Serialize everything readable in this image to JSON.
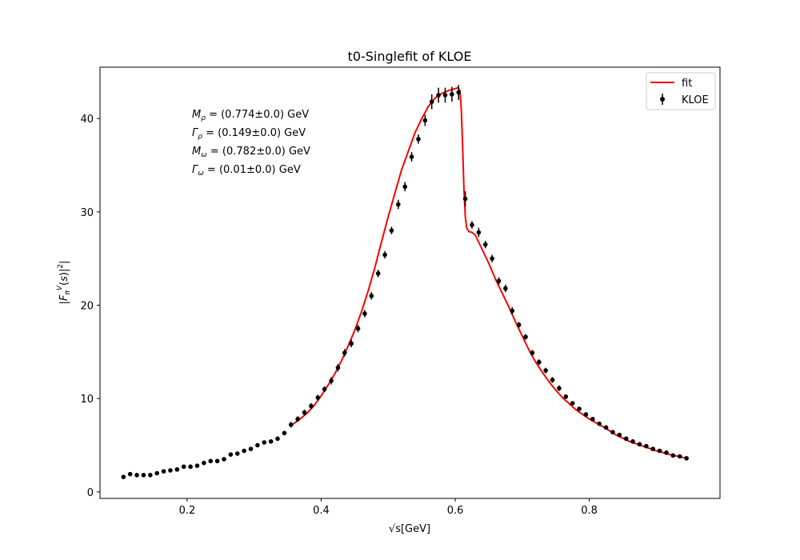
{
  "chart_data": {
    "type": "scatter",
    "title": "t0-Singlefit of KLOE",
    "xlabel": "√s[GeV]",
    "ylabel": "|F_π^V(s)|²",
    "xlim": [
      0.07,
      0.995
    ],
    "ylim": [
      -0.7,
      45.5
    ],
    "xticks": [
      0.2,
      0.4,
      0.6,
      0.8
    ],
    "xtick_labels": [
      "0.2",
      "0.4",
      "0.6",
      "0.8"
    ],
    "yticks": [
      0,
      10,
      20,
      30,
      40
    ],
    "ytick_labels": [
      "0",
      "10",
      "20",
      "30",
      "40"
    ],
    "legend_position": "top-right",
    "legend": [
      {
        "label": "fit",
        "kind": "line",
        "color": "#ff0000"
      },
      {
        "label": "KLOE",
        "kind": "errorbar",
        "color": "#000000"
      }
    ],
    "annotations": [
      {
        "var": "M",
        "sub": "ρ",
        "text": "= (0.774±0.0) GeV"
      },
      {
        "var": "Γ",
        "sub": "ρ",
        "text": "= (0.149±0.0) GeV"
      },
      {
        "var": "M",
        "sub": "ω",
        "text": "= (0.782±0.0) GeV"
      },
      {
        "var": "Γ",
        "sub": "ω",
        "text": "= (0.01±0.0) GeV"
      }
    ],
    "series": [
      {
        "name": "fit",
        "style": "line",
        "color": "#ff0000",
        "x": [
          0.355,
          0.37,
          0.38,
          0.39,
          0.4,
          0.41,
          0.42,
          0.43,
          0.44,
          0.45,
          0.46,
          0.47,
          0.48,
          0.49,
          0.5,
          0.51,
          0.52,
          0.53,
          0.54,
          0.55,
          0.56,
          0.57,
          0.58,
          0.59,
          0.6,
          0.604,
          0.607,
          0.609,
          0.611,
          0.613,
          0.615,
          0.617,
          0.62,
          0.625,
          0.63,
          0.64,
          0.65,
          0.66,
          0.67,
          0.68,
          0.69,
          0.7,
          0.71,
          0.72,
          0.73,
          0.74,
          0.75,
          0.76,
          0.78,
          0.8,
          0.82,
          0.84,
          0.86,
          0.88,
          0.9,
          0.92,
          0.945
        ],
        "y": [
          7.1,
          7.9,
          8.5,
          9.3,
          10.3,
          11.4,
          12.6,
          14.0,
          15.6,
          17.3,
          19.3,
          21.5,
          24.0,
          26.8,
          29.5,
          32.0,
          34.5,
          36.5,
          38.5,
          40.0,
          41.3,
          42.2,
          42.7,
          43.0,
          43.2,
          43.3,
          43.0,
          41.0,
          37.0,
          32.5,
          29.5,
          28.3,
          27.9,
          27.8,
          27.5,
          26.0,
          24.5,
          22.8,
          21.3,
          19.8,
          18.2,
          16.7,
          15.2,
          13.9,
          12.8,
          11.8,
          10.9,
          10.1,
          8.8,
          7.8,
          7.0,
          6.1,
          5.4,
          4.9,
          4.4,
          4.0,
          3.6
        ]
      },
      {
        "name": "KLOE",
        "style": "errorbar",
        "color": "#000000",
        "x": [
          0.105,
          0.115,
          0.125,
          0.135,
          0.145,
          0.155,
          0.165,
          0.175,
          0.185,
          0.195,
          0.205,
          0.215,
          0.225,
          0.235,
          0.245,
          0.255,
          0.265,
          0.275,
          0.285,
          0.295,
          0.305,
          0.315,
          0.325,
          0.335,
          0.345,
          0.355,
          0.365,
          0.375,
          0.385,
          0.395,
          0.405,
          0.415,
          0.425,
          0.435,
          0.445,
          0.455,
          0.465,
          0.475,
          0.485,
          0.495,
          0.505,
          0.515,
          0.525,
          0.535,
          0.545,
          0.555,
          0.565,
          0.575,
          0.585,
          0.595,
          0.605,
          0.615,
          0.625,
          0.635,
          0.645,
          0.655,
          0.665,
          0.675,
          0.685,
          0.695,
          0.705,
          0.715,
          0.725,
          0.735,
          0.745,
          0.755,
          0.765,
          0.775,
          0.785,
          0.795,
          0.805,
          0.815,
          0.825,
          0.835,
          0.845,
          0.855,
          0.865,
          0.875,
          0.885,
          0.895,
          0.905,
          0.915,
          0.925,
          0.935,
          0.945
        ],
        "y": [
          1.6,
          1.9,
          1.8,
          1.8,
          1.8,
          2.0,
          2.2,
          2.3,
          2.4,
          2.7,
          2.7,
          2.8,
          3.1,
          3.3,
          3.3,
          3.5,
          4.0,
          4.1,
          4.4,
          4.6,
          5.0,
          5.3,
          5.4,
          5.7,
          6.3,
          7.2,
          7.8,
          8.5,
          9.2,
          10.1,
          11.0,
          11.9,
          13.3,
          14.9,
          15.9,
          17.5,
          19.1,
          21.0,
          23.4,
          25.4,
          28.0,
          30.8,
          32.7,
          35.9,
          37.8,
          39.8,
          41.8,
          42.5,
          42.5,
          42.6,
          42.8,
          31.4,
          28.6,
          27.8,
          26.5,
          25.0,
          22.6,
          21.8,
          19.4,
          17.9,
          16.6,
          14.9,
          13.9,
          13.0,
          12.0,
          11.1,
          10.2,
          9.5,
          8.9,
          8.3,
          7.8,
          7.3,
          6.9,
          6.4,
          6.1,
          5.7,
          5.4,
          5.1,
          4.9,
          4.6,
          4.4,
          4.2,
          3.9,
          3.8,
          3.6
        ],
        "err": [
          0.1,
          0.1,
          0.1,
          0.1,
          0.1,
          0.1,
          0.1,
          0.1,
          0.1,
          0.1,
          0.1,
          0.1,
          0.1,
          0.1,
          0.1,
          0.1,
          0.1,
          0.1,
          0.1,
          0.1,
          0.1,
          0.1,
          0.1,
          0.1,
          0.15,
          0.3,
          0.3,
          0.3,
          0.3,
          0.3,
          0.3,
          0.4,
          0.4,
          0.4,
          0.4,
          0.4,
          0.4,
          0.4,
          0.4,
          0.4,
          0.4,
          0.5,
          0.5,
          0.5,
          0.5,
          0.6,
          0.8,
          0.8,
          0.8,
          0.8,
          0.8,
          0.8,
          0.4,
          0.5,
          0.4,
          0.4,
          0.4,
          0.4,
          0.4,
          0.3,
          0.3,
          0.3,
          0.3,
          0.3,
          0.3,
          0.3,
          0.2,
          0.2,
          0.2,
          0.2,
          0.2,
          0.2,
          0.2,
          0.2,
          0.2,
          0.2,
          0.2,
          0.2,
          0.15,
          0.15,
          0.15,
          0.15,
          0.15,
          0.15,
          0.15
        ]
      }
    ]
  }
}
